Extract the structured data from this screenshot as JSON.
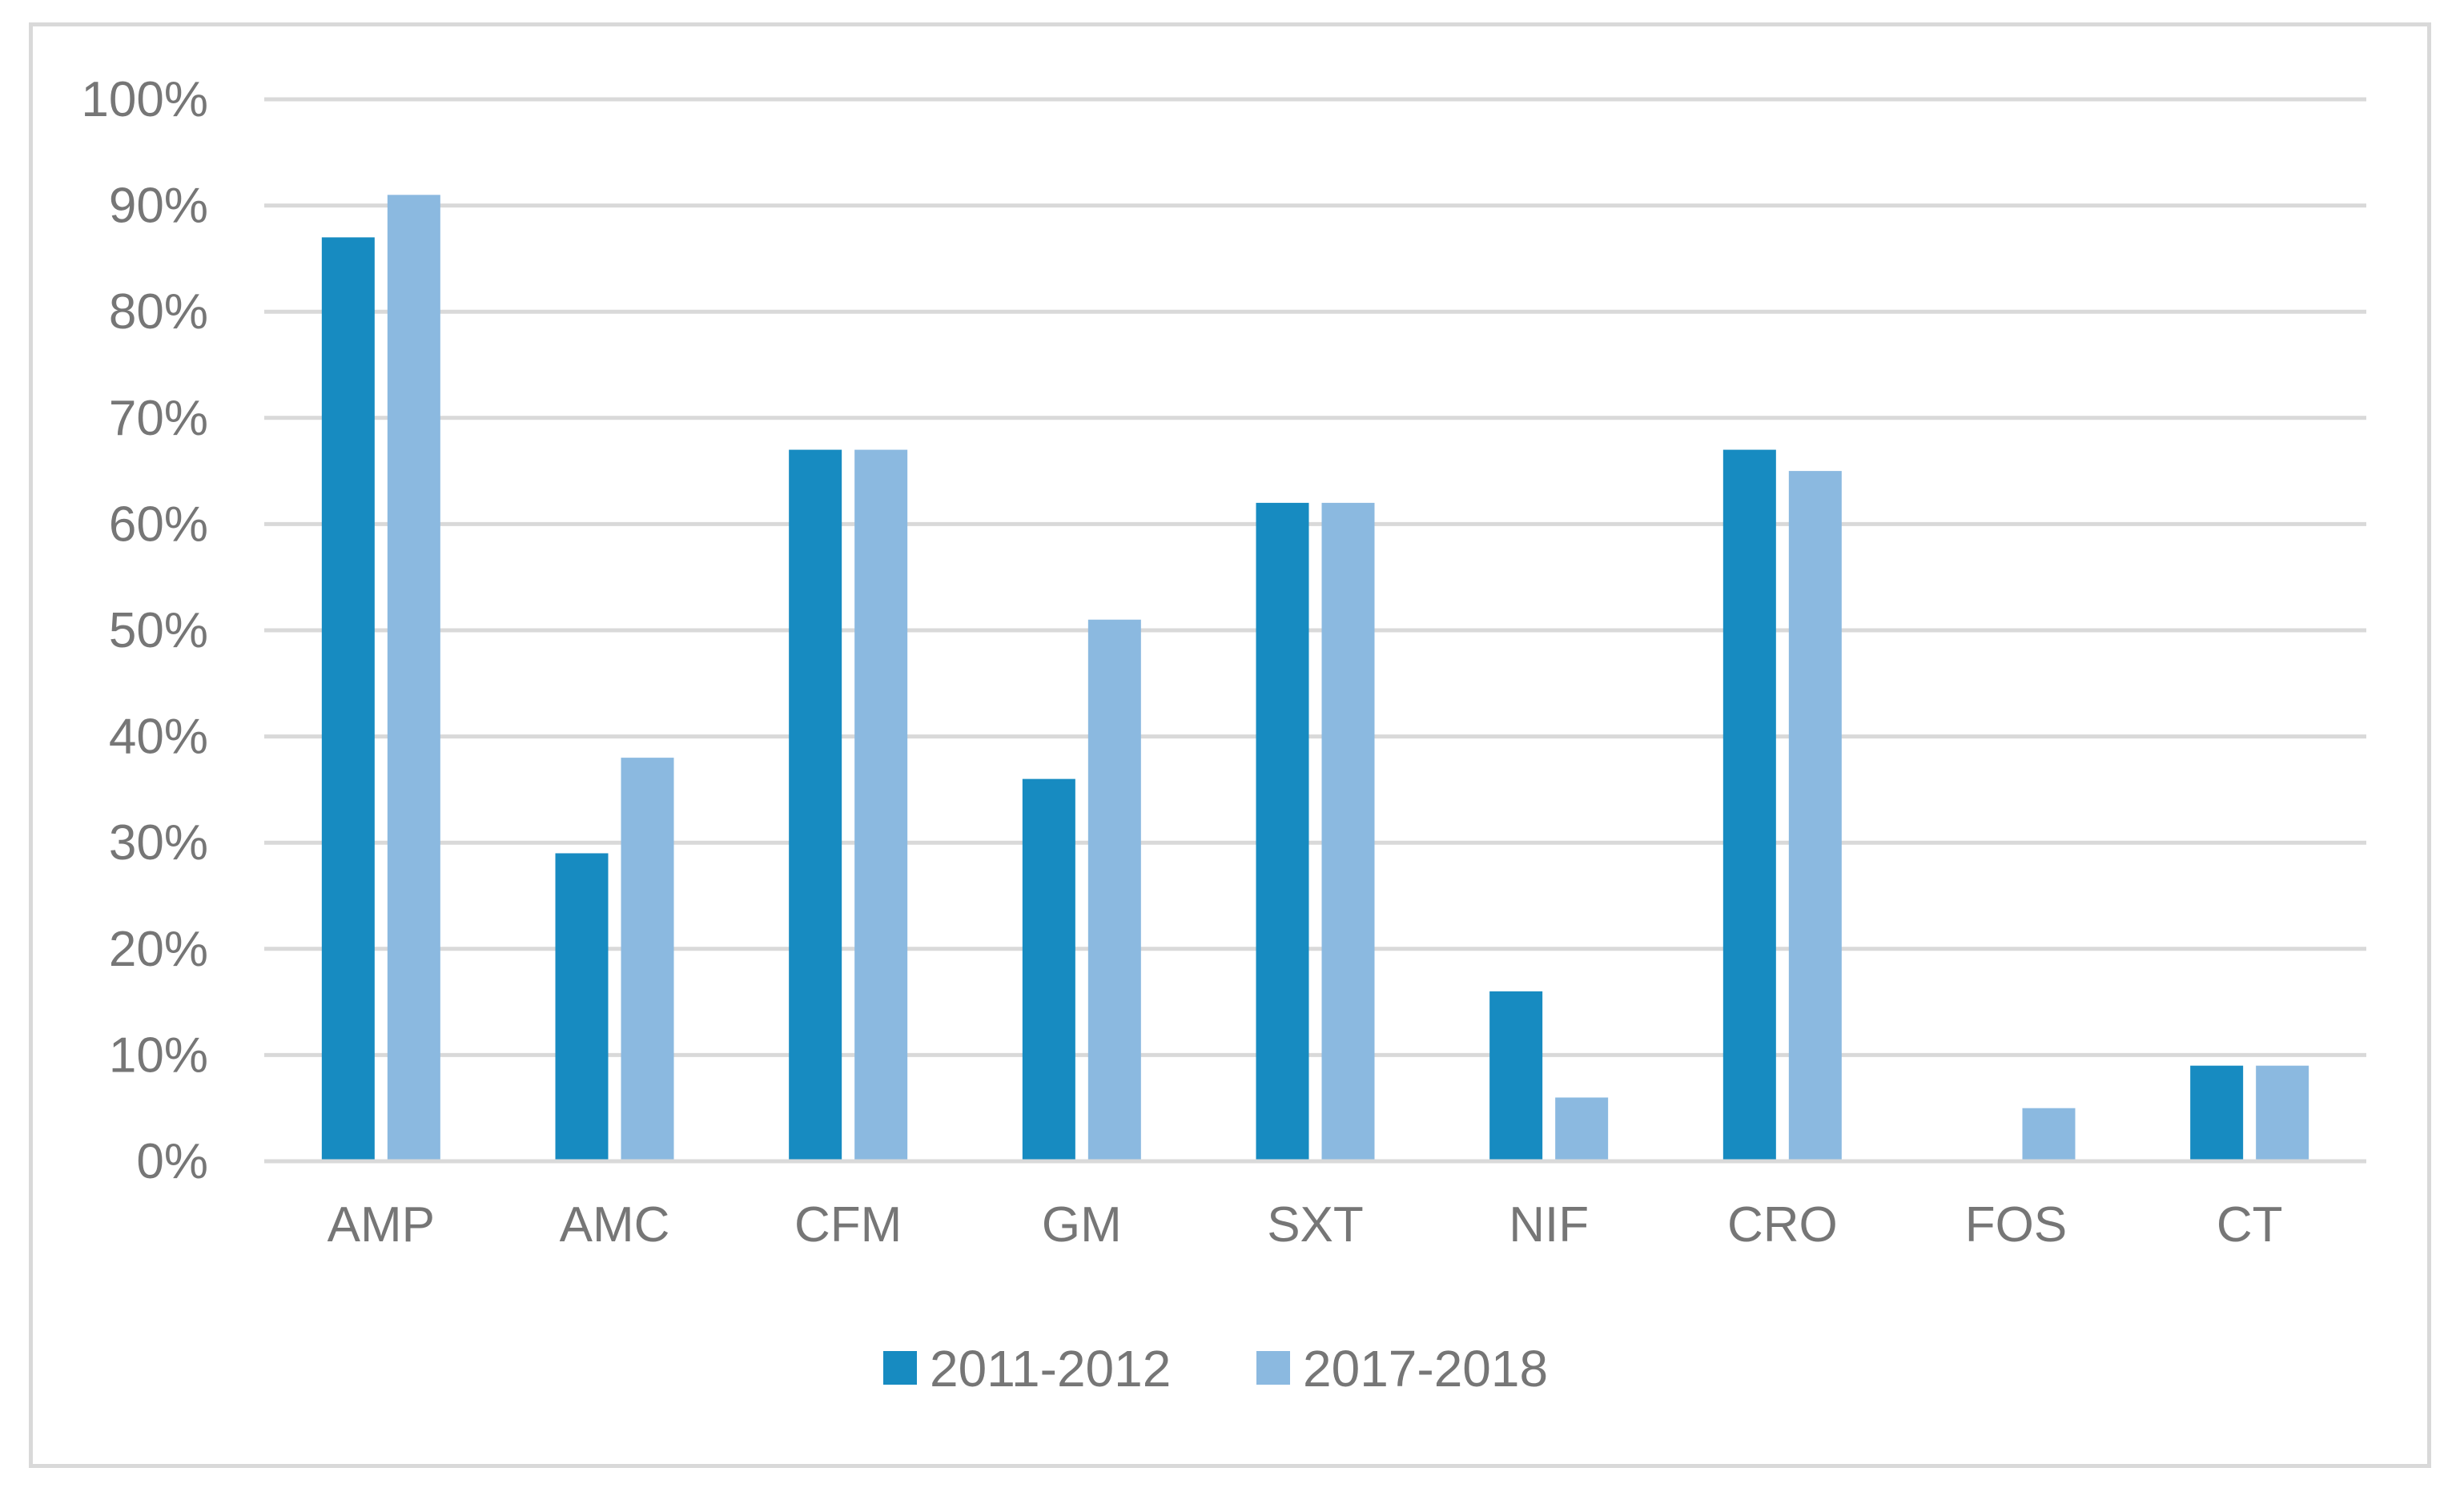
{
  "chart_data": {
    "type": "bar",
    "categories": [
      "AMP",
      "AMC",
      "CFM",
      "GM",
      "SXT",
      "NIF",
      "CRO",
      "FOS",
      "CT"
    ],
    "series": [
      {
        "name": "2011-2012",
        "color": "#178bc1",
        "values": [
          87,
          29,
          67,
          36,
          62,
          16,
          67,
          0,
          9
        ]
      },
      {
        "name": "2017-2018",
        "color": "#8bb9e0",
        "values": [
          91,
          38,
          67,
          51,
          62,
          6,
          65,
          5,
          9
        ]
      }
    ],
    "y_ticks": [
      "0%",
      "10%",
      "20%",
      "30%",
      "40%",
      "50%",
      "60%",
      "70%",
      "80%",
      "90%",
      "100%"
    ],
    "ylim": [
      0,
      100
    ],
    "y_unit": "%",
    "title": "",
    "xlabel": "",
    "ylabel": "",
    "grid": true,
    "gridline_color": "#d9d9d9",
    "legend_position": "bottom"
  }
}
